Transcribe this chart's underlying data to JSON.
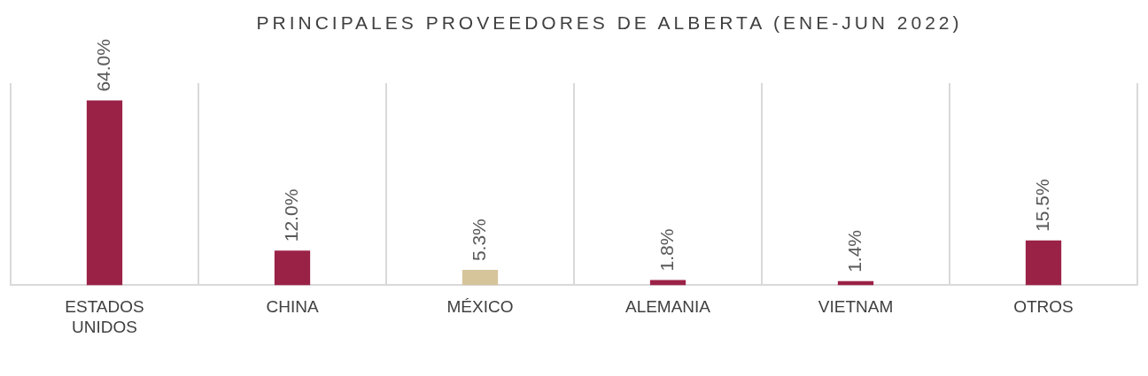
{
  "chart_data": {
    "type": "bar",
    "title": "PRINCIPALES PROVEEDORES DE ALBERTA (ENE-JUN 2022)",
    "categories": [
      "ESTADOS UNIDOS",
      "CHINA",
      "MÉXICO",
      "ALEMANIA",
      "VIETNAM",
      "OTROS"
    ],
    "values": [
      64.0,
      12.0,
      5.3,
      1.8,
      1.4,
      15.5
    ],
    "colors": [
      "#9b2247",
      "#9b2247",
      "#d6c59b",
      "#9b2247",
      "#9b2247",
      "#9b2247"
    ],
    "value_labels": [
      "64.0%",
      "12.0%",
      "5.3%",
      "1.8%",
      "1.4%",
      "15.5%"
    ],
    "grid": "x",
    "tick_labels": "x",
    "legend": false
  }
}
